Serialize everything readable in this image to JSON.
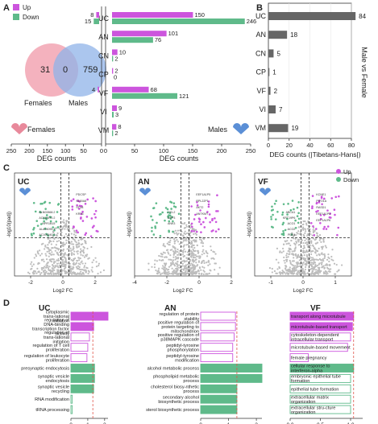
{
  "panel_letters": {
    "a": "A",
    "b": "B",
    "c": "C",
    "d": "D"
  },
  "legend": {
    "up": "Up",
    "down": "Down",
    "up_color": "#cc55dd",
    "down_color": "#5fba8a"
  },
  "venn": {
    "females_label": "Females",
    "males_label": "Males",
    "females_only": "31",
    "overlap": "0",
    "males_only": "759",
    "female_color": "#f2a5b3",
    "male_color": "#8fb3e8"
  },
  "panelA_left": {
    "corner_label": "Females",
    "xlabel": "DEG counts",
    "ticks": [
      "250",
      "200",
      "150",
      "100",
      "50",
      "0"
    ]
  },
  "panelA_right": {
    "corner_label": "Males",
    "xlabel": "DEG counts",
    "ticks": [
      "0",
      "50",
      "100",
      "150",
      "200",
      "250"
    ]
  },
  "chart_data": [
    {
      "type": "bar",
      "categories": [
        "UC",
        "AN",
        "CN",
        "CP",
        "VF",
        "VI",
        "VM"
      ],
      "series": [
        {
          "name": "Up",
          "female": [
            8,
            0,
            0,
            0,
            4,
            0,
            0
          ],
          "male": [
            150,
            101,
            10,
            2,
            68,
            9,
            8
          ]
        },
        {
          "name": "Down",
          "female": [
            15,
            0,
            0,
            0,
            0,
            0,
            0
          ],
          "male": [
            246,
            76,
            2,
            0,
            121,
            3,
            2
          ]
        }
      ],
      "xlabel": "DEG counts",
      "xlim": [
        0,
        250
      ]
    },
    {
      "type": "bar",
      "categories": [
        "UC",
        "AN",
        "CN",
        "CP",
        "VF",
        "VI",
        "VM"
      ],
      "values": [
        84,
        18,
        5,
        1,
        2,
        7,
        19
      ],
      "xlabel": "DEG counts (|Tibetans-Hans|)",
      "ylabel": "Male vs Female",
      "xlim": [
        0,
        80
      ],
      "ticks": [
        "0",
        "20",
        "40",
        "60",
        "80"
      ]
    },
    {
      "type": "scatter",
      "panels": [
        {
          "title": "UC",
          "xlim": [
            -3,
            3
          ],
          "xticks": [
            "-2",
            "0",
            "2"
          ],
          "labels_down": [
            "ALN02868.2",
            "AC015670.2",
            "NPR1B15",
            "ALA04095.1",
            "AC104540.2"
          ],
          "labels_up": [
            "PDCSP",
            "S100A8",
            "STX8",
            "KRT6"
          ]
        },
        {
          "title": "AN",
          "xlim": [
            -4,
            2
          ],
          "xticks": [
            "-4",
            "-2",
            "0",
            "2"
          ],
          "labels_down": [
            "CCL2",
            "DPP3",
            "ANK3"
          ],
          "labels_up": [
            "EEF1A1P5",
            "RPL22P1",
            "AKT2",
            "ANTKMT"
          ]
        },
        {
          "title": "VF",
          "xlim": [
            -1.5,
            1.5
          ],
          "xticks": [
            "-1",
            "0",
            "1"
          ],
          "labels_down": [
            "ABCA1",
            "KRT19P6",
            "ACO1",
            "ACO2",
            "PDK4"
          ],
          "labels_up": [
            "KCNE1",
            "PIFO1A",
            "RASD1",
            "EEF1A1P5",
            "EEF1A1P6"
          ]
        }
      ],
      "xlabel": "Log2 FC",
      "ylabel": "-log10(padj)"
    },
    {
      "type": "bar",
      "xlabel": "-log10(q value)",
      "panels": [
        {
          "title": "UC",
          "xlim": [
            0,
            2.2
          ],
          "ticks": [
            "0",
            "1",
            "2"
          ],
          "threshold": 1.3,
          "terms": [
            {
              "label": "cytoplasmic trans-lational initiation",
              "value": 2.2,
              "dir": "up"
            },
            {
              "label": "regulation of DNA-binding transcription factor activity",
              "value": 1.35,
              "dir": "up"
            },
            {
              "label": "regulation of trans-lational initiation",
              "value": 1.1,
              "dir": "up"
            },
            {
              "label": "regulation of T cell proliferation",
              "value": 1.0,
              "dir": "up"
            },
            {
              "label": "regulation of leukocyte proliferation",
              "value": 0.95,
              "dir": "up"
            },
            {
              "label": "presynaptic endocytosis",
              "value": 1.4,
              "dir": "down"
            },
            {
              "label": "synaptic vesicle endocytosis",
              "value": 1.4,
              "dir": "down"
            },
            {
              "label": "synaptic vesicle recycling",
              "value": 1.35,
              "dir": "down"
            },
            {
              "label": "RNA modification",
              "value": 0.08,
              "dir": "down"
            },
            {
              "label": "tRNA processing",
              "value": 0.08,
              "dir": "down"
            }
          ]
        },
        {
          "title": "AN",
          "xlim": [
            0,
            2.2
          ],
          "ticks": [
            "0",
            "1",
            "2"
          ],
          "threshold": 1.3,
          "terms": [
            {
              "label": "regulation of protein stability",
              "value": 1.25,
              "dir": "up"
            },
            {
              "label": "positive regulation of protein targeting to mitochondrion",
              "value": 1.25,
              "dir": "up"
            },
            {
              "label": "positive regulation of p38MAPK cascade",
              "value": 1.2,
              "dir": "up"
            },
            {
              "label": "peptidyl-tyrosine phosphorylation",
              "value": 1.15,
              "dir": "up"
            },
            {
              "label": "peptidyl-tyrosine modification",
              "value": 1.15,
              "dir": "up"
            },
            {
              "label": "alcohol metabolic process",
              "value": 2.2,
              "dir": "down"
            },
            {
              "label": "phospholipid metabolic process",
              "value": 2.2,
              "dir": "down"
            },
            {
              "label": "cholesterol biosy-nthetic process",
              "value": 1.3,
              "dir": "down"
            },
            {
              "label": "secondary alcohol biosynthetic process",
              "value": 1.3,
              "dir": "down"
            },
            {
              "label": "sterol biosynthetic process",
              "value": 1.3,
              "dir": "down"
            }
          ]
        },
        {
          "title": "VF",
          "xlim": [
            0,
            1.2
          ],
          "ticks": [
            "0.0",
            "0.5",
            "1.0"
          ],
          "threshold": 1.05,
          "terms": [
            {
              "label": "transport along microtubule",
              "value": 1.05,
              "dir": "up"
            },
            {
              "label": "microtubule-based transport",
              "value": 1.03,
              "dir": "up"
            },
            {
              "label": "cytoskeleton-dependent intracellular transport",
              "value": 1.0,
              "dir": "up"
            },
            {
              "label": "microtubule-based movement",
              "value": 0.95,
              "dir": "up"
            },
            {
              "label": "female pregnancy",
              "value": 0.3,
              "dir": "up"
            },
            {
              "label": "cellular response to interferon-alpha",
              "value": 1.05,
              "dir": "down"
            },
            {
              "label": "embryonic epithelial tube formation",
              "value": 1.0,
              "dir": "down"
            },
            {
              "label": "epithelial tube formation",
              "value": 1.0,
              "dir": "down"
            },
            {
              "label": "extracellular matrix organization",
              "value": 1.0,
              "dir": "down"
            },
            {
              "label": "extracellular stru-cture organization",
              "value": 1.0,
              "dir": "down"
            }
          ]
        }
      ]
    }
  ]
}
